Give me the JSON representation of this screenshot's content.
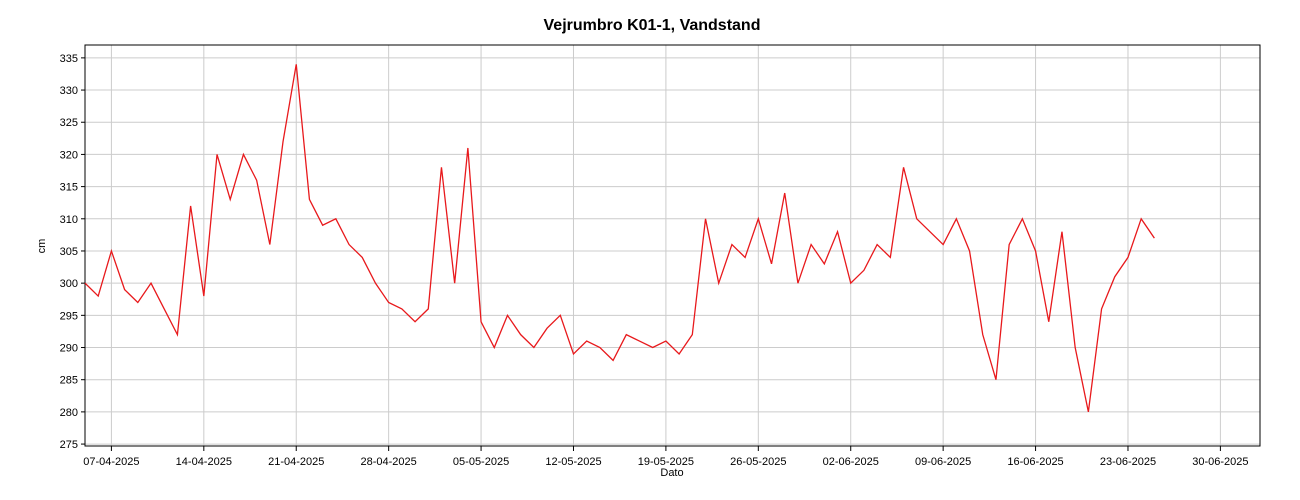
{
  "chart_data": {
    "type": "line",
    "title": "Vejrumbro K01-1, Vandstand",
    "x_label": "Dato",
    "y_label": "cm",
    "x": [
      "2025-04-05",
      "2025-04-06",
      "2025-04-07",
      "2025-04-08",
      "2025-04-09",
      "2025-04-10",
      "2025-04-11",
      "2025-04-12",
      "2025-04-13",
      "2025-04-14",
      "2025-04-15",
      "2025-04-16",
      "2025-04-17",
      "2025-04-18",
      "2025-04-19",
      "2025-04-20",
      "2025-04-21",
      "2025-04-22",
      "2025-04-23",
      "2025-04-24",
      "2025-04-25",
      "2025-04-26",
      "2025-04-27",
      "2025-04-28",
      "2025-04-29",
      "2025-04-30",
      "2025-05-01",
      "2025-05-02",
      "2025-05-03",
      "2025-05-04",
      "2025-05-05",
      "2025-05-06",
      "2025-05-07",
      "2025-05-08",
      "2025-05-09",
      "2025-05-10",
      "2025-05-11",
      "2025-05-12",
      "2025-05-13",
      "2025-05-14",
      "2025-05-15",
      "2025-05-16",
      "2025-05-17",
      "2025-05-18",
      "2025-05-19",
      "2025-05-20",
      "2025-05-21",
      "2025-05-22",
      "2025-05-23",
      "2025-05-24",
      "2025-05-25",
      "2025-05-26",
      "2025-05-27",
      "2025-05-28",
      "2025-05-29",
      "2025-05-30",
      "2025-05-31",
      "2025-06-01",
      "2025-06-02",
      "2025-06-03",
      "2025-06-04",
      "2025-06-05",
      "2025-06-06",
      "2025-06-07",
      "2025-06-08",
      "2025-06-09",
      "2025-06-10",
      "2025-06-11",
      "2025-06-12",
      "2025-06-13",
      "2025-06-14",
      "2025-06-15",
      "2025-06-16",
      "2025-06-17",
      "2025-06-18",
      "2025-06-19",
      "2025-06-20",
      "2025-06-21",
      "2025-06-22",
      "2025-06-23",
      "2025-06-24",
      "2025-06-25"
    ],
    "series": [
      {
        "name": "Vandstand",
        "color": "#e8191c",
        "values": [
          300,
          298,
          305,
          299,
          297,
          300,
          296,
          292,
          312,
          298,
          320,
          313,
          320,
          316,
          306,
          322,
          334,
          313,
          309,
          310,
          306,
          304,
          300,
          297,
          296,
          294,
          296,
          318,
          300,
          321,
          294,
          290,
          295,
          292,
          290,
          293,
          295,
          289,
          291,
          290,
          288,
          292,
          291,
          290,
          291,
          289,
          292,
          310,
          300,
          306,
          304,
          310,
          303,
          314,
          300,
          306,
          303,
          308,
          300,
          302,
          306,
          304,
          318,
          310,
          308,
          306,
          310,
          305,
          292,
          285,
          306,
          310,
          305,
          294,
          308,
          290,
          280,
          296,
          301,
          304,
          310,
          307
        ]
      }
    ],
    "xlim": [
      "2025-04-05",
      "2025-07-03"
    ],
    "xticks": [
      {
        "value": "2025-04-07",
        "label": "07-04-2025"
      },
      {
        "value": "2025-04-14",
        "label": "14-04-2025"
      },
      {
        "value": "2025-04-21",
        "label": "21-04-2025"
      },
      {
        "value": "2025-04-28",
        "label": "28-04-2025"
      },
      {
        "value": "2025-05-05",
        "label": "05-05-2025"
      },
      {
        "value": "2025-05-12",
        "label": "12-05-2025"
      },
      {
        "value": "2025-05-19",
        "label": "19-05-2025"
      },
      {
        "value": "2025-05-26",
        "label": "26-05-2025"
      },
      {
        "value": "2025-06-02",
        "label": "02-06-2025"
      },
      {
        "value": "2025-06-09",
        "label": "09-06-2025"
      },
      {
        "value": "2025-06-16",
        "label": "16-06-2025"
      },
      {
        "value": "2025-06-23",
        "label": "23-06-2025"
      },
      {
        "value": "2025-06-30",
        "label": "30-06-2025"
      }
    ],
    "ylim": [
      274.7,
      337
    ],
    "yticks": [
      275,
      280,
      285,
      290,
      295,
      300,
      305,
      310,
      315,
      320,
      325,
      330,
      335
    ],
    "grid": true
  }
}
